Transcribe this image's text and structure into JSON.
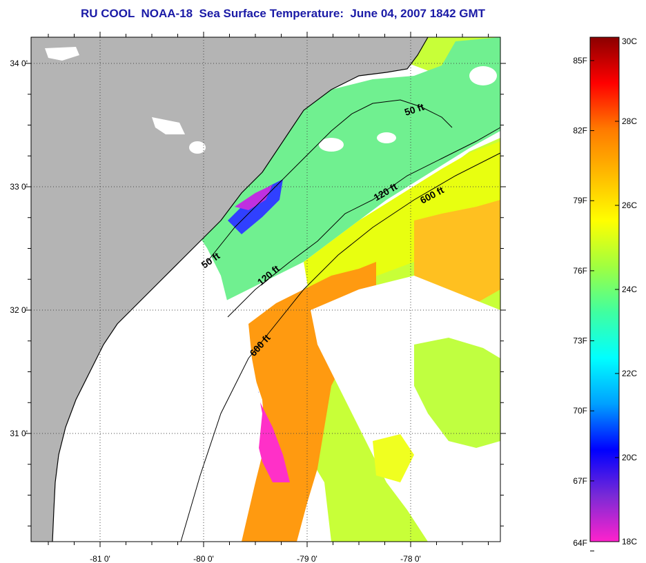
{
  "title": "RU COOL  NOAA-18  Sea Surface Temperature:  June 04, 2007 1842 GMT",
  "map": {
    "lat_ticks": [
      {
        "label": "34 0'",
        "lat": 34.0
      },
      {
        "label": "33 0'",
        "lat": 33.0
      },
      {
        "label": "32 0'",
        "lat": 32.0
      },
      {
        "label": "31 0'",
        "lat": 31.0
      }
    ],
    "lon_ticks": [
      {
        "label": "-81 0'",
        "lon": -81.0
      },
      {
        "label": "-80 0'",
        "lon": -80.0
      },
      {
        "label": "-79 0'",
        "lon": -79.0
      },
      {
        "label": "-78 0'",
        "lon": -78.0
      }
    ],
    "contour_labels": [
      {
        "text": "50 ft",
        "name": "isobath-50ft-north"
      },
      {
        "text": "50 ft",
        "name": "isobath-50ft-south"
      },
      {
        "text": "120 ft",
        "name": "isobath-120ft-north"
      },
      {
        "text": "120 ft",
        "name": "isobath-120ft-south"
      },
      {
        "text": "600 ft",
        "name": "isobath-600ft-north"
      },
      {
        "text": "600 ft",
        "name": "isobath-600ft-south"
      }
    ],
    "colors": {
      "land": "#b4b4b4",
      "cloud": "#ffffff",
      "grid": "#555555"
    }
  },
  "colorbar": {
    "fahrenheit_labels": [
      "85F",
      "82F",
      "79F",
      "76F",
      "73F",
      "70F",
      "67F",
      "64F"
    ],
    "celsius_labels": [
      "30C",
      "28C",
      "26C",
      "24C",
      "22C",
      "20C",
      "18C"
    ],
    "range_c": [
      18,
      30
    ],
    "stops": [
      "#ff22cc",
      "#7a2ad6",
      "#0000ff",
      "#00a0ff",
      "#00ffff",
      "#40ffa0",
      "#a0ff40",
      "#ffff00",
      "#ffbb00",
      "#ff7a00",
      "#ff0000",
      "#8b0000"
    ]
  }
}
